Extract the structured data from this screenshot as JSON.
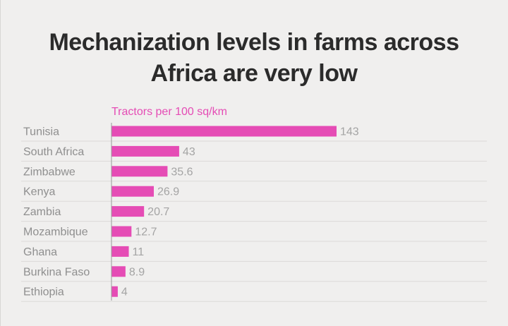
{
  "chart_data": {
    "type": "bar",
    "orientation": "horizontal",
    "title": [
      "Mechanization levels in farms across",
      "Africa are very low"
    ],
    "unit_label": "Tractors per 100 sq/km",
    "categories": [
      "Tunisia",
      "South Africa",
      "Zimbabwe",
      "Kenya",
      "Zambia",
      "Mozambique",
      "Ghana",
      "Burkina Faso",
      "Ethiopia"
    ],
    "values": [
      143,
      43,
      35.6,
      26.9,
      20.7,
      12.7,
      11,
      8.9,
      4
    ],
    "value_labels": [
      "143",
      "43",
      "35.6",
      "26.9",
      "20.7",
      "12.7",
      "11",
      "8.9",
      "4"
    ],
    "xlim": [
      0,
      143
    ],
    "grid": false,
    "colors": {
      "bar": "#e54cb5",
      "unit_label": "#e54cb5",
      "row_line": "#dcdad8",
      "axis": "#999999"
    }
  }
}
